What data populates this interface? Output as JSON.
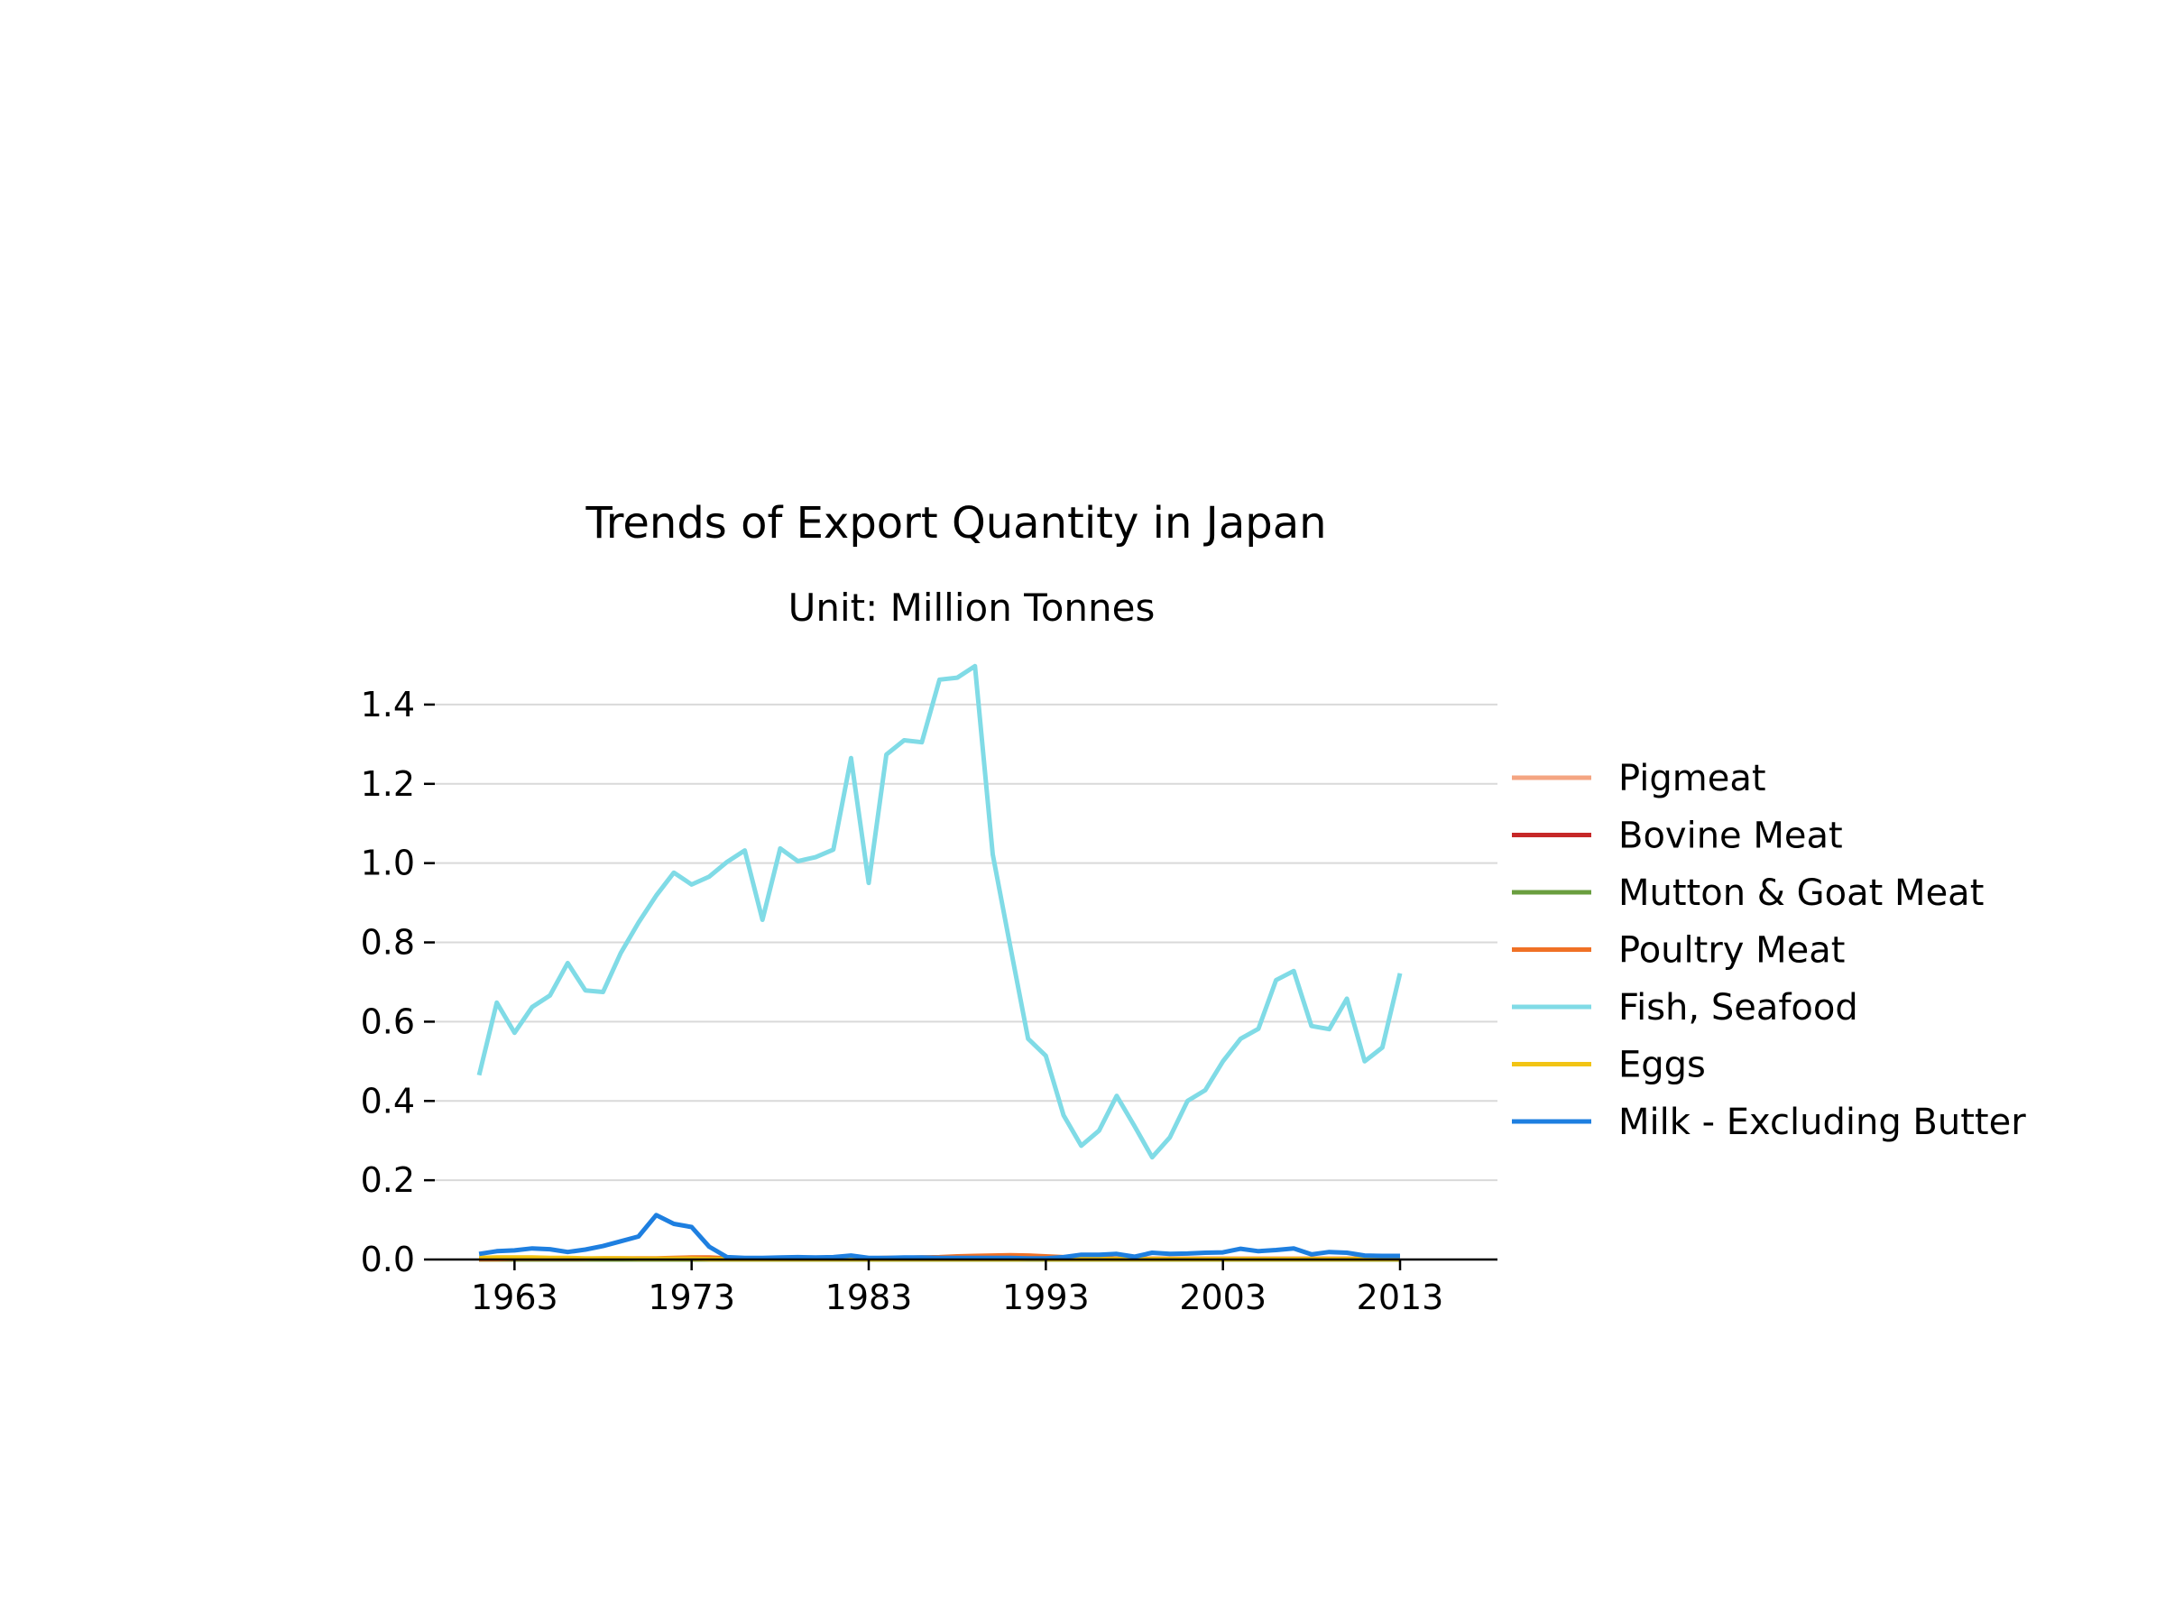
{
  "chart_data": {
    "type": "line",
    "title": "Trends of Export Quantity in Japan",
    "subtitle": "Unit: Million Tonnes",
    "xlabel": "",
    "ylabel": "",
    "xlim": [
      1958.5,
      2018.5
    ],
    "ylim": [
      0,
      1.5
    ],
    "x_ticks": [
      1963,
      1973,
      1983,
      1993,
      2003,
      2013
    ],
    "y_ticks": [
      0.0,
      0.2,
      0.4,
      0.6,
      0.8,
      1.0,
      1.2,
      1.4
    ],
    "x_tick_labels": [
      "1963",
      "1973",
      "1983",
      "1993",
      "2003",
      "2013"
    ],
    "y_tick_labels": [
      "0.0",
      "0.2",
      "0.4",
      "0.6",
      "0.8",
      "1.0",
      "1.2",
      "1.4"
    ],
    "grid": "horizontal",
    "legend_position": "right",
    "x": [
      1961,
      1962,
      1963,
      1964,
      1965,
      1966,
      1967,
      1968,
      1969,
      1970,
      1971,
      1972,
      1973,
      1974,
      1975,
      1976,
      1977,
      1978,
      1979,
      1980,
      1981,
      1982,
      1983,
      1984,
      1985,
      1986,
      1987,
      1988,
      1989,
      1990,
      1991,
      1992,
      1993,
      1994,
      1995,
      1996,
      1997,
      1998,
      1999,
      2000,
      2001,
      2002,
      2003,
      2004,
      2005,
      2006,
      2007,
      2008,
      2009,
      2010,
      2011,
      2012,
      2013
    ],
    "series": [
      {
        "name": "Pigmeat",
        "color": "#f4a582",
        "values": [
          0.001,
          0.001,
          0.001,
          0.001,
          0.001,
          0.001,
          0.001,
          0.001,
          0.001,
          0.001,
          0.001,
          0.001,
          0.001,
          0.001,
          0.0,
          0.0,
          0.0,
          0.0,
          0.0,
          0.0,
          0.0,
          0.0,
          0.0,
          0.0,
          0.0,
          0.0,
          0.0,
          0.0,
          0.0,
          0.0,
          0.0,
          0.0,
          0.0,
          0.0,
          0.0,
          0.0,
          0.0,
          0.0,
          0.0,
          0.0,
          0.0,
          0.0,
          0.001,
          0.001,
          0.001,
          0.001,
          0.001,
          0.001,
          0.001,
          0.001,
          0.001,
          0.001,
          0.001
        ]
      },
      {
        "name": "Bovine Meat",
        "color": "#c62828",
        "values": [
          0.0,
          0.0,
          0.0,
          0.0,
          0.0,
          0.0,
          0.0,
          0.0,
          0.0,
          0.0,
          0.0,
          0.0,
          0.0,
          0.0,
          0.0,
          0.0,
          0.0,
          0.0,
          0.0,
          0.0,
          0.0,
          0.0,
          0.0,
          0.0,
          0.0,
          0.0,
          0.0,
          0.0,
          0.0,
          0.0,
          0.0,
          0.0,
          0.0,
          0.0,
          0.0,
          0.0,
          0.0,
          0.0,
          0.0,
          0.0,
          0.0,
          0.0,
          0.0,
          0.0,
          0.0,
          0.0,
          0.0,
          0.0,
          0.0,
          0.0,
          0.0,
          0.001,
          0.001
        ]
      },
      {
        "name": "Mutton & Goat Meat",
        "color": "#6a9e3f",
        "values": [
          0.0,
          0.0,
          0.0,
          0.0,
          0.0,
          0.0,
          0.0,
          0.0,
          0.0,
          0.0,
          0.0,
          0.0,
          0.0,
          0.0,
          0.0,
          0.0,
          0.0,
          0.0,
          0.0,
          0.0,
          0.0,
          0.0,
          0.0,
          0.0,
          0.0,
          0.0,
          0.0,
          0.0,
          0.0,
          0.0,
          0.0,
          0.0,
          0.0,
          0.0,
          0.0,
          0.0,
          0.0,
          0.0,
          0.0,
          0.0,
          0.0,
          0.0,
          0.0,
          0.0,
          0.0,
          0.0,
          0.0,
          0.0,
          0.0,
          0.0,
          0.0,
          0.0,
          0.0
        ]
      },
      {
        "name": "Poultry Meat",
        "color": "#f07125",
        "values": [
          0.001,
          0.001,
          0.002,
          0.002,
          0.002,
          0.002,
          0.002,
          0.003,
          0.003,
          0.003,
          0.003,
          0.004,
          0.005,
          0.005,
          0.003,
          0.002,
          0.002,
          0.002,
          0.002,
          0.002,
          0.003,
          0.003,
          0.003,
          0.004,
          0.004,
          0.005,
          0.006,
          0.008,
          0.009,
          0.01,
          0.011,
          0.01,
          0.008,
          0.006,
          0.004,
          0.003,
          0.002,
          0.002,
          0.002,
          0.002,
          0.002,
          0.002,
          0.002,
          0.002,
          0.002,
          0.002,
          0.002,
          0.002,
          0.002,
          0.002,
          0.002,
          0.002,
          0.002
        ]
      },
      {
        "name": "Fish, Seafood",
        "color": "#80dbe6",
        "values": [
          0.465,
          0.648,
          0.572,
          0.637,
          0.666,
          0.748,
          0.679,
          0.675,
          0.773,
          0.85,
          0.918,
          0.976,
          0.946,
          0.966,
          1.003,
          1.032,
          0.857,
          1.037,
          1.005,
          1.015,
          1.034,
          1.265,
          0.95,
          1.274,
          1.31,
          1.305,
          1.463,
          1.468,
          1.497,
          1.022,
          0.788,
          0.557,
          0.514,
          0.364,
          0.287,
          0.325,
          0.413,
          0.337,
          0.258,
          0.308,
          0.4,
          0.427,
          0.5,
          0.557,
          0.582,
          0.705,
          0.728,
          0.589,
          0.581,
          0.658,
          0.5,
          0.535,
          0.722
        ]
      },
      {
        "name": "Eggs",
        "color": "#f2c414",
        "values": [
          0.004,
          0.005,
          0.005,
          0.005,
          0.004,
          0.004,
          0.003,
          0.003,
          0.003,
          0.002,
          0.002,
          0.002,
          0.002,
          0.001,
          0.001,
          0.001,
          0.001,
          0.001,
          0.001,
          0.001,
          0.001,
          0.001,
          0.001,
          0.001,
          0.001,
          0.001,
          0.001,
          0.001,
          0.001,
          0.001,
          0.001,
          0.001,
          0.001,
          0.001,
          0.001,
          0.001,
          0.001,
          0.001,
          0.001,
          0.001,
          0.001,
          0.001,
          0.001,
          0.001,
          0.001,
          0.001,
          0.001,
          0.001,
          0.001,
          0.001,
          0.001,
          0.001,
          0.001
        ]
      },
      {
        "name": "Milk - Excluding Butter",
        "color": "#1e7fe0",
        "values": [
          0.014,
          0.021,
          0.023,
          0.028,
          0.026,
          0.019,
          0.025,
          0.034,
          0.046,
          0.058,
          0.112,
          0.09,
          0.082,
          0.032,
          0.006,
          0.004,
          0.004,
          0.005,
          0.006,
          0.005,
          0.006,
          0.01,
          0.004,
          0.004,
          0.005,
          0.005,
          0.004,
          0.004,
          0.004,
          0.004,
          0.004,
          0.003,
          0.003,
          0.006,
          0.012,
          0.012,
          0.014,
          0.007,
          0.017,
          0.014,
          0.015,
          0.017,
          0.018,
          0.027,
          0.021,
          0.024,
          0.028,
          0.013,
          0.019,
          0.017,
          0.01,
          0.009,
          0.009
        ]
      }
    ]
  }
}
